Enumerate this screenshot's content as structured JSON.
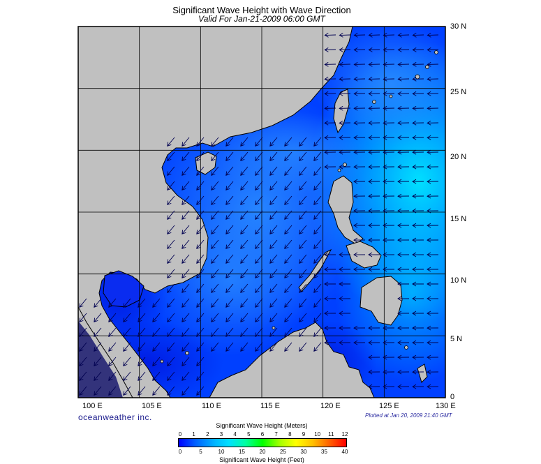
{
  "title": "Significant Wave Height with Wave Direction",
  "subtitle": "Valid For Jan-21-2009 06:00 GMT",
  "lat_labels": [
    "30 N",
    "25 N",
    "20 N",
    "15 N",
    "10 N",
    "5 N",
    "0"
  ],
  "lon_labels": [
    "100 E",
    "105 E",
    "110 E",
    "115 E",
    "120 E",
    "125 E",
    "130 E"
  ],
  "brand": "oceanweather inc.",
  "plotted": "Plotted at Jan 20, 2009 21:40 GMT",
  "scale": {
    "meters_title": "Significant Wave Height (Meters)",
    "meters_ticks": [
      "0",
      "1",
      "2",
      "3",
      "4",
      "5",
      "6",
      "7",
      "8",
      "9",
      "10",
      "11",
      "12"
    ],
    "feet_ticks": [
      "0",
      "5",
      "10",
      "15",
      "20",
      "25",
      "30",
      "35",
      "40"
    ],
    "feet_title": "Significant Wave Height (Feet)"
  },
  "colors": {
    "land": "#c0c0c0",
    "sea_low": "#0032ff",
    "sea_mid": "#0070ff",
    "sea_high": "#00c8ff",
    "arrow": "#000050",
    "grid": "#000000"
  },
  "map_extent": {
    "lon": [
      100,
      130
    ],
    "lat": [
      0,
      30
    ]
  },
  "wave_direction": "from northeast (arrows pointing to southwest)"
}
